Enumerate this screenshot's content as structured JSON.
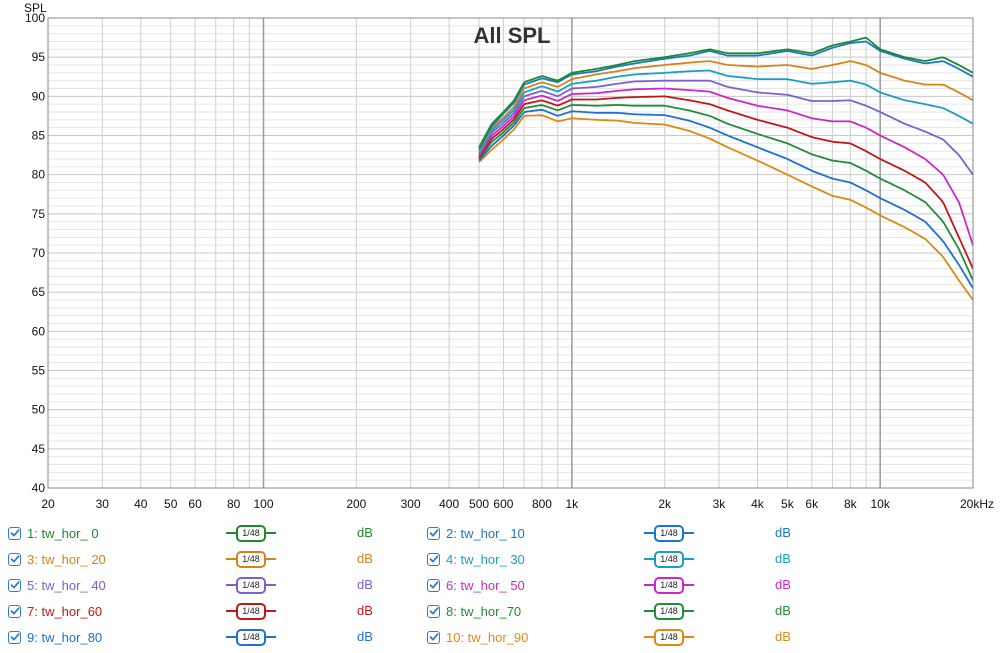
{
  "chart_data": {
    "type": "line",
    "title": "All SPL",
    "ylabel": "SPL",
    "xlabel": "",
    "xscale": "log",
    "xlim": [
      20,
      20000
    ],
    "ylim": [
      40,
      100
    ],
    "grid": true,
    "y_ticks": [
      40,
      45,
      50,
      55,
      60,
      65,
      70,
      75,
      80,
      85,
      90,
      95,
      100
    ],
    "x_ticks": [
      {
        "v": 20,
        "label": "20"
      },
      {
        "v": 30,
        "label": "30"
      },
      {
        "v": 40,
        "label": "40"
      },
      {
        "v": 50,
        "label": "50"
      },
      {
        "v": 60,
        "label": "60"
      },
      {
        "v": 80,
        "label": "80"
      },
      {
        "v": 100,
        "label": "100"
      },
      {
        "v": 200,
        "label": "200"
      },
      {
        "v": 300,
        "label": "300"
      },
      {
        "v": 400,
        "label": "400"
      },
      {
        "v": 500,
        "label": "500"
      },
      {
        "v": 600,
        "label": "600"
      },
      {
        "v": 800,
        "label": "800"
      },
      {
        "v": 1000,
        "label": "1k"
      },
      {
        "v": 2000,
        "label": "2k"
      },
      {
        "v": 3000,
        "label": "3k"
      },
      {
        "v": 4000,
        "label": "4k"
      },
      {
        "v": 5000,
        "label": "5k"
      },
      {
        "v": 6000,
        "label": "6k"
      },
      {
        "v": 8000,
        "label": "8k"
      },
      {
        "v": 10000,
        "label": "10k"
      },
      {
        "v": 20000,
        "label": "20kHz"
      }
    ],
    "x": [
      500,
      550,
      600,
      650,
      700,
      800,
      900,
      1000,
      1200,
      1400,
      1600,
      2000,
      2400,
      2800,
      3200,
      4000,
      5000,
      6000,
      7000,
      8000,
      9000,
      10000,
      12000,
      14000,
      16000,
      18000,
      20000
    ],
    "series": [
      {
        "name": "1: tw_hor_ 0",
        "color": "#1e8a2e",
        "values": [
          83.5,
          86.5,
          88.0,
          89.5,
          91.8,
          92.6,
          92.0,
          93.0,
          93.5,
          94.0,
          94.5,
          95.0,
          95.5,
          96.0,
          95.5,
          95.5,
          96.0,
          95.5,
          96.5,
          97.0,
          97.5,
          96.0,
          95.0,
          94.5,
          95.0,
          94.0,
          93.0
        ]
      },
      {
        "name": "2: tw_hor_ 10",
        "color": "#1a78c8",
        "values": [
          83.2,
          86.2,
          87.8,
          89.2,
          91.5,
          92.3,
          91.8,
          92.8,
          93.2,
          93.8,
          94.2,
          94.8,
          95.2,
          95.8,
          95.2,
          95.2,
          95.8,
          95.2,
          96.2,
          96.8,
          97.0,
          95.8,
          94.8,
          94.2,
          94.5,
          93.5,
          92.5
        ]
      },
      {
        "name": "3: tw_hor_ 20",
        "color": "#d4841a",
        "values": [
          83.0,
          86.0,
          87.3,
          88.7,
          91.0,
          91.8,
          91.2,
          92.2,
          92.8,
          93.2,
          93.6,
          94.0,
          94.3,
          94.5,
          94.0,
          93.8,
          94.0,
          93.5,
          94.0,
          94.5,
          94.0,
          93.0,
          92.0,
          91.5,
          91.5,
          90.5,
          89.5
        ]
      },
      {
        "name": "4: tw_hor_ 30",
        "color": "#17a0c0",
        "values": [
          82.8,
          85.7,
          87.0,
          88.3,
          90.5,
          91.3,
          90.6,
          91.6,
          92.0,
          92.5,
          92.8,
          93.0,
          93.2,
          93.3,
          92.6,
          92.2,
          92.2,
          91.6,
          91.8,
          92.0,
          91.5,
          90.5,
          89.5,
          89.0,
          88.5,
          87.5,
          86.5
        ]
      },
      {
        "name": "5: tw_hor_ 40",
        "color": "#7a62d0",
        "values": [
          82.6,
          85.4,
          86.6,
          87.9,
          90.0,
          90.7,
          90.0,
          91.0,
          91.2,
          91.6,
          91.9,
          92.0,
          92.0,
          92.0,
          91.2,
          90.5,
          90.2,
          89.4,
          89.4,
          89.5,
          88.8,
          88.0,
          86.5,
          85.5,
          84.5,
          82.5,
          80.0
        ]
      },
      {
        "name": "6: tw_hor_ 50",
        "color": "#cc28c8",
        "values": [
          82.4,
          85.0,
          86.2,
          87.5,
          89.5,
          90.1,
          89.4,
          90.3,
          90.4,
          90.7,
          90.9,
          91.0,
          90.8,
          90.6,
          89.8,
          88.8,
          88.2,
          87.2,
          86.8,
          86.8,
          86.0,
          85.0,
          83.5,
          82.0,
          80.0,
          76.5,
          71.0
        ]
      },
      {
        "name": "7: tw_hor_60",
        "color": "#c01818",
        "values": [
          82.2,
          84.6,
          85.8,
          87.1,
          89.0,
          89.5,
          88.8,
          89.6,
          89.6,
          89.8,
          89.9,
          90.0,
          89.5,
          89.0,
          88.2,
          87.0,
          86.0,
          84.8,
          84.2,
          84.0,
          83.0,
          82.0,
          80.5,
          79.0,
          76.5,
          72.0,
          68.0
        ]
      },
      {
        "name": "8: tw_hor_70",
        "color": "#228c3a",
        "values": [
          82.0,
          84.2,
          85.4,
          86.7,
          88.5,
          88.9,
          88.2,
          88.9,
          88.8,
          88.9,
          88.8,
          88.8,
          88.2,
          87.5,
          86.5,
          85.2,
          84.0,
          82.6,
          81.8,
          81.5,
          80.5,
          79.5,
          78.0,
          76.5,
          74.0,
          70.5,
          66.5
        ]
      },
      {
        "name": "9: tw_hor_80",
        "color": "#2070d0",
        "values": [
          81.8,
          83.7,
          85.0,
          86.3,
          88.0,
          88.3,
          87.5,
          88.1,
          87.9,
          87.9,
          87.7,
          87.6,
          86.9,
          86.0,
          85.0,
          83.5,
          82.0,
          80.5,
          79.5,
          79.0,
          78.0,
          77.0,
          75.5,
          74.0,
          71.5,
          68.5,
          65.5
        ]
      },
      {
        "name": "10: tw_hor_90",
        "color": "#de8a12",
        "values": [
          81.6,
          83.2,
          84.5,
          85.8,
          87.5,
          87.6,
          86.8,
          87.2,
          87.0,
          86.9,
          86.6,
          86.4,
          85.6,
          84.6,
          83.5,
          81.8,
          80.0,
          78.5,
          77.3,
          76.8,
          75.8,
          74.8,
          73.3,
          71.8,
          69.5,
          66.5,
          64.0
        ]
      }
    ]
  },
  "legend": {
    "items": [
      {
        "label": "1: tw_hor_ 0",
        "smoothing": "1/48",
        "unit": "dB",
        "color": "#1e8a2e"
      },
      {
        "label": "2: tw_hor_ 10",
        "smoothing": "1/48",
        "unit": "dB",
        "color": "#1a78c8"
      },
      {
        "label": "3: tw_hor_ 20",
        "smoothing": "1/48",
        "unit": "dB",
        "color": "#d4841a"
      },
      {
        "label": "4: tw_hor_ 30",
        "smoothing": "1/48",
        "unit": "dB",
        "color": "#17a0c0"
      },
      {
        "label": "5: tw_hor_ 40",
        "smoothing": "1/48",
        "unit": "dB",
        "color": "#7a62d0"
      },
      {
        "label": "6: tw_hor_ 50",
        "smoothing": "1/48",
        "unit": "dB",
        "color": "#cc28c8"
      },
      {
        "label": "7: tw_hor_60",
        "smoothing": "1/48",
        "unit": "dB",
        "color": "#c01818"
      },
      {
        "label": "8: tw_hor_70",
        "smoothing": "1/48",
        "unit": "dB",
        "color": "#228c3a"
      },
      {
        "label": "9: tw_hor_80",
        "smoothing": "1/48",
        "unit": "dB",
        "color": "#2070d0"
      },
      {
        "label": "10: tw_hor_90",
        "smoothing": "1/48",
        "unit": "dB",
        "color": "#de8a12"
      }
    ]
  }
}
